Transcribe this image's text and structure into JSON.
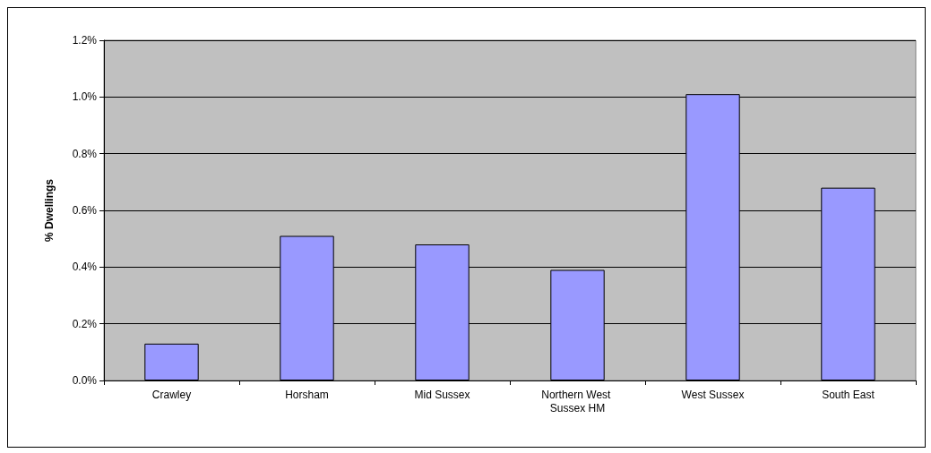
{
  "chart_data": {
    "type": "bar",
    "ylabel": "% Dwellings",
    "categories": [
      "Crawley",
      "Horsham",
      "Mid Sussex",
      "Northern West Sussex HM",
      "West Sussex",
      "South East"
    ],
    "values": [
      0.13,
      0.51,
      0.48,
      0.39,
      1.01,
      0.68
    ],
    "color": "#9999ff",
    "ylim": [
      0,
      1.2
    ],
    "yticks": [
      {
        "value": 0,
        "label": "0.0%"
      },
      {
        "value": 0.2,
        "label": "0.2%"
      },
      {
        "value": 0.4,
        "label": "0.4%"
      },
      {
        "value": 0.6,
        "label": "0.6%"
      },
      {
        "value": 0.8,
        "label": "0.8%"
      },
      {
        "value": 1.0,
        "label": "1.0%"
      },
      {
        "value": 1.2,
        "label": "1.2%"
      }
    ],
    "grid": "y"
  }
}
